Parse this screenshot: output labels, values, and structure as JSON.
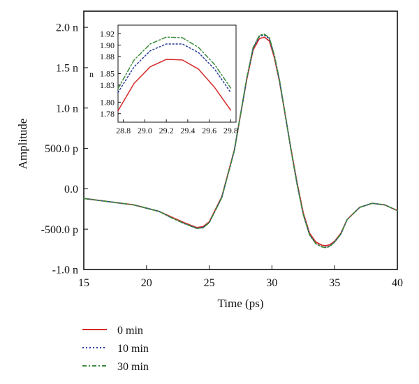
{
  "chart_data": [
    {
      "id": "main",
      "type": "line",
      "xlabel": "Time (ps)",
      "ylabel": "Amplitude",
      "xlim": [
        15,
        40
      ],
      "ylim": [
        -1e-09,
        2.2e-09
      ],
      "x_ticks": [
        15,
        20,
        25,
        30,
        35,
        40
      ],
      "x_tick_labels": [
        "15",
        "20",
        "25",
        "30",
        "35",
        "40"
      ],
      "y_ticks": [
        -1e-09,
        -5e-10,
        0,
        5e-10,
        1e-09,
        1.5e-09,
        2e-09
      ],
      "y_tick_labels": [
        "-1.0 n",
        "-500.0 p",
        "0.0",
        "500.0 p",
        "1.0 n",
        "1.5 n",
        "2.0 n"
      ],
      "grid": false,
      "legend_position": "below",
      "series": [
        {
          "name": "0 min",
          "color": "#d42a2a",
          "dash": "solid",
          "x": [
            15,
            17,
            19,
            21,
            22,
            23,
            24,
            24.5,
            25,
            26,
            27,
            28,
            28.5,
            29,
            29.4,
            29.8,
            30.2,
            30.6,
            31,
            31.5,
            32,
            32.5,
            33,
            33.5,
            34,
            34.3,
            34.6,
            35,
            35.5,
            36,
            37,
            38,
            39,
            40
          ],
          "y": [
            -1.2e-10,
            -1.6e-10,
            -2e-10,
            -2.8e-10,
            -3.5e-10,
            -4.2e-10,
            -4.8e-10,
            -4.7e-10,
            -4.1e-10,
            -1e-10,
            4.8e-10,
            1.36e-09,
            1.72e-09,
            1.86e-09,
            1.878e-09,
            1.83e-09,
            1.62e-09,
            1.33e-09,
            9.7e-10,
            5.1e-10,
            8e-11,
            -3e-10,
            -5.5e-10,
            -6.6e-10,
            -7e-10,
            -7.05e-10,
            -6.95e-10,
            -6.5e-10,
            -5.5e-10,
            -3.8e-10,
            -2.3e-10,
            -1.8e-10,
            -2e-10,
            -2.7e-10
          ]
        },
        {
          "name": "10 min",
          "color": "#2b3f9a",
          "dash": "dotted",
          "x": [
            15,
            17,
            19,
            21,
            22,
            23,
            24,
            24.5,
            25,
            26,
            27,
            28,
            28.5,
            29,
            29.4,
            29.8,
            30.2,
            30.6,
            31,
            31.5,
            32,
            32.5,
            33,
            33.5,
            34,
            34.3,
            34.6,
            35,
            35.5,
            36,
            37,
            38,
            39,
            40
          ],
          "y": [
            -1.2e-10,
            -1.6e-10,
            -2e-10,
            -2.8e-10,
            -3.6e-10,
            -4.3e-10,
            -4.9e-10,
            -4.8e-10,
            -4.2e-10,
            -1.1e-10,
            4.7e-10,
            1.37e-09,
            1.74e-09,
            1.89e-09,
            1.905e-09,
            1.86e-09,
            1.64e-09,
            1.34e-09,
            9.7e-10,
            5e-10,
            6e-11,
            -3.2e-10,
            -5.7e-10,
            -6.8e-10,
            -7.2e-10,
            -7.25e-10,
            -7.1e-10,
            -6.6e-10,
            -5.6e-10,
            -3.8e-10,
            -2.3e-10,
            -1.8e-10,
            -2e-10,
            -2.7e-10
          ]
        },
        {
          "name": "30 min",
          "color": "#3c8a3c",
          "dash": "dashdot",
          "x": [
            15,
            17,
            19,
            21,
            22,
            23,
            24,
            24.5,
            25,
            26,
            27,
            28,
            28.5,
            29,
            29.4,
            29.8,
            30.2,
            30.6,
            31,
            31.5,
            32,
            32.5,
            33,
            33.5,
            34,
            34.3,
            34.6,
            35,
            35.5,
            36,
            37,
            38,
            39,
            40
          ],
          "y": [
            -1.2e-10,
            -1.6e-10,
            -2e-10,
            -2.8e-10,
            -3.6e-10,
            -4.3e-10,
            -4.9e-10,
            -4.85e-10,
            -4.2e-10,
            -1.1e-10,
            4.7e-10,
            1.38e-09,
            1.75e-09,
            1.9e-09,
            1.915e-09,
            1.87e-09,
            1.65e-09,
            1.35e-09,
            9.8e-10,
            5e-10,
            6e-11,
            -3.2e-10,
            -5.7e-10,
            -6.8e-10,
            -7.2e-10,
            -7.3e-10,
            -7.15e-10,
            -6.6e-10,
            -5.6e-10,
            -3.8e-10,
            -2.3e-10,
            -1.8e-10,
            -2e-10,
            -2.7e-10
          ]
        }
      ]
    },
    {
      "id": "inset",
      "type": "line",
      "xlim": [
        28.75,
        29.85
      ],
      "ylim": [
        1.765,
        1.935
      ],
      "x_ticks": [
        28.8,
        29.0,
        29.2,
        29.4,
        29.6,
        29.8
      ],
      "x_tick_labels": [
        "28.8",
        "29.0",
        "29.2",
        "29.4",
        "29.6",
        "29.8"
      ],
      "y_ticks": [
        1.78,
        1.8,
        1.83,
        1.85,
        1.88,
        1.9,
        1.92
      ],
      "y_tick_labels": [
        "1.78",
        "1.80",
        "1.83",
        "1.85",
        "1.88",
        "1.90",
        "1.92"
      ],
      "y_unit_label": "n",
      "series": [
        {
          "name": "0 min",
          "color": "#d42a2a",
          "dash": "solid",
          "x": [
            28.75,
            28.9,
            29.05,
            29.2,
            29.35,
            29.5,
            29.65,
            29.8
          ],
          "y": [
            1.785,
            1.833,
            1.862,
            1.875,
            1.874,
            1.858,
            1.826,
            1.786
          ]
        },
        {
          "name": "10 min",
          "color": "#2b3f9a",
          "dash": "dotted",
          "x": [
            28.75,
            28.9,
            29.05,
            29.2,
            29.35,
            29.5,
            29.65,
            29.8
          ],
          "y": [
            1.817,
            1.862,
            1.89,
            1.902,
            1.902,
            1.887,
            1.858,
            1.817
          ]
        },
        {
          "name": "30 min",
          "color": "#3c8a3c",
          "dash": "dashdot",
          "x": [
            28.75,
            28.9,
            29.05,
            29.2,
            29.35,
            29.5,
            29.65,
            29.8
          ],
          "y": [
            1.824,
            1.874,
            1.902,
            1.914,
            1.913,
            1.896,
            1.866,
            1.825
          ]
        }
      ]
    }
  ]
}
